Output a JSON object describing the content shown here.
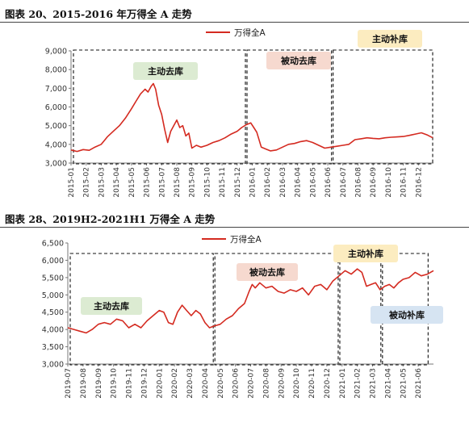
{
  "figures": [
    {
      "title": "图表 20、2015-2016 年万得全 A 走势"
    },
    {
      "title": "图表 28、2019H2-2021H1 万得全 A 走势"
    }
  ],
  "colors": {
    "line": "#d42a20",
    "phase_green": "#dcebd2",
    "phase_pink": "#f6d9cf",
    "phase_yellow": "#fcecc0",
    "phase_blue": "#d6e4f2"
  },
  "chart_data": [
    {
      "type": "line",
      "title": "",
      "legend": {
        "entries": [
          "万得全A"
        ],
        "placement": "top-center"
      },
      "ylim": [
        3000,
        9000
      ],
      "yticks": [
        3000,
        4000,
        5000,
        6000,
        7000,
        8000,
        9000
      ],
      "ytick_labels": [
        "3,000",
        "4,000",
        "5,000",
        "6,000",
        "7,000",
        "8,000",
        "9,000"
      ],
      "xtick_labels": [
        "2015-01",
        "2015-02",
        "2015-03",
        "2015-04",
        "2015-05",
        "2015-06",
        "2015-07",
        "2015-08",
        "2015-09",
        "2015-10",
        "2015-11",
        "2015-12",
        "2016-01",
        "2016-02",
        "2016-03",
        "2016-04",
        "2016-05",
        "2016-06",
        "2016-07",
        "2016-08",
        "2016-09",
        "2016-10",
        "2016-11",
        "2016-12"
      ],
      "grid": false,
      "series": [
        {
          "name": "万得全A",
          "x": [
            0,
            0.4,
            0.8,
            1.2,
            1.6,
            2,
            2.4,
            2.8,
            3.2,
            3.6,
            4,
            4.3,
            4.6,
            4.9,
            5.1,
            5.3,
            5.45,
            5.6,
            5.8,
            6,
            6.2,
            6.4,
            6.6,
            6.8,
            7,
            7.2,
            7.4,
            7.6,
            7.8,
            8,
            8.3,
            8.6,
            9,
            9.4,
            9.8,
            10.2,
            10.6,
            11,
            11.3,
            11.6,
            11.9,
            12.1,
            12.3,
            12.6,
            12.9,
            13.2,
            13.6,
            14,
            14.4,
            14.8,
            15.2,
            15.6,
            16,
            16.4,
            16.8,
            17.2,
            17.6,
            18,
            18.4,
            18.8,
            19.2,
            19.6,
            20,
            20.4,
            20.8,
            21.2,
            21.6,
            22,
            22.4,
            22.8,
            23.2,
            23.6,
            23.95
          ],
          "y": [
            3700,
            3620,
            3720,
            3680,
            3860,
            4000,
            4400,
            4700,
            5000,
            5400,
            5900,
            6300,
            6700,
            6950,
            6800,
            7100,
            7250,
            6950,
            6100,
            5600,
            4800,
            4100,
            4700,
            5000,
            5300,
            4900,
            5000,
            4450,
            4600,
            3800,
            3950,
            3850,
            3950,
            4100,
            4200,
            4350,
            4550,
            4700,
            4900,
            5050,
            5150,
            4900,
            4650,
            3850,
            3750,
            3650,
            3700,
            3850,
            4000,
            4050,
            4150,
            4200,
            4100,
            3950,
            3800,
            3850,
            3900,
            3950,
            4000,
            4250,
            4300,
            4350,
            4320,
            4300,
            4350,
            4380,
            4400,
            4420,
            4480,
            4550,
            4620,
            4500,
            4350
          ]
        }
      ],
      "phases": [
        {
          "label": "主动去库",
          "start": 0,
          "end": 11.6
        },
        {
          "label": "被动去库",
          "start": 11.6,
          "end": 17.3
        },
        {
          "label": "主动补库",
          "start": 17.3,
          "end": 24
        }
      ]
    },
    {
      "type": "line",
      "title": "",
      "legend": {
        "entries": [
          "万得全A"
        ],
        "placement": "top-center"
      },
      "ylim": [
        3000,
        6500
      ],
      "yticks": [
        3000,
        3500,
        4000,
        4500,
        5000,
        5500,
        6000,
        6500
      ],
      "ytick_labels": [
        "3,000",
        "3,500",
        "4,000",
        "4,500",
        "5,000",
        "5,500",
        "6,000",
        "6,500"
      ],
      "xtick_labels": [
        "2019-07",
        "2019-08",
        "2019-09",
        "2019-10",
        "2019-11",
        "2019-12",
        "2020-01",
        "2020-02",
        "2020-03",
        "2020-04",
        "2020-05",
        "2020-06",
        "2020-07",
        "2020-08",
        "2020-09",
        "2020-10",
        "2020-11",
        "2020-12",
        "2021-01",
        "2021-02",
        "2021-03",
        "2021-04",
        "2021-05",
        "2021-06"
      ],
      "grid": false,
      "series": [
        {
          "name": "万得全A",
          "x": [
            0,
            0.4,
            0.8,
            1.2,
            1.6,
            2,
            2.4,
            2.8,
            3.2,
            3.6,
            4,
            4.4,
            4.8,
            5.2,
            5.6,
            6,
            6.3,
            6.6,
            6.9,
            7.2,
            7.5,
            7.8,
            8.1,
            8.4,
            8.7,
            9,
            9.3,
            9.6,
            10,
            10.4,
            10.8,
            11.2,
            11.6,
            11.9,
            12.1,
            12.3,
            12.6,
            13,
            13.4,
            13.8,
            14.2,
            14.6,
            15,
            15.4,
            15.8,
            16.2,
            16.6,
            17,
            17.4,
            17.8,
            18.2,
            18.6,
            19,
            19.3,
            19.6,
            19.9,
            20.2,
            20.5,
            20.8,
            21.1,
            21.4,
            21.7,
            22,
            22.4,
            22.8,
            23.2,
            23.6,
            24
          ],
          "y": [
            4050,
            4000,
            3950,
            3900,
            4000,
            4150,
            4200,
            4150,
            4300,
            4250,
            4050,
            4150,
            4050,
            4250,
            4400,
            4550,
            4500,
            4200,
            4150,
            4500,
            4700,
            4550,
            4400,
            4550,
            4450,
            4200,
            4050,
            4100,
            4150,
            4300,
            4400,
            4600,
            4750,
            5100,
            5300,
            5200,
            5350,
            5200,
            5250,
            5100,
            5050,
            5150,
            5100,
            5200,
            5000,
            5250,
            5300,
            5150,
            5400,
            5550,
            5700,
            5600,
            5750,
            5650,
            5250,
            5300,
            5350,
            5150,
            5250,
            5300,
            5200,
            5350,
            5450,
            5500,
            5650,
            5550,
            5600,
            5700
          ]
        }
      ],
      "phases": [
        {
          "label": "主动去库",
          "start": 0,
          "end": 9.6
        },
        {
          "label": "被动去库",
          "start": 9.6,
          "end": 17.8
        },
        {
          "label": "主动补库",
          "start": 17.8,
          "end": 20.6
        },
        {
          "label": "被动补库",
          "start": 20.6,
          "end": 23.7
        }
      ]
    }
  ]
}
